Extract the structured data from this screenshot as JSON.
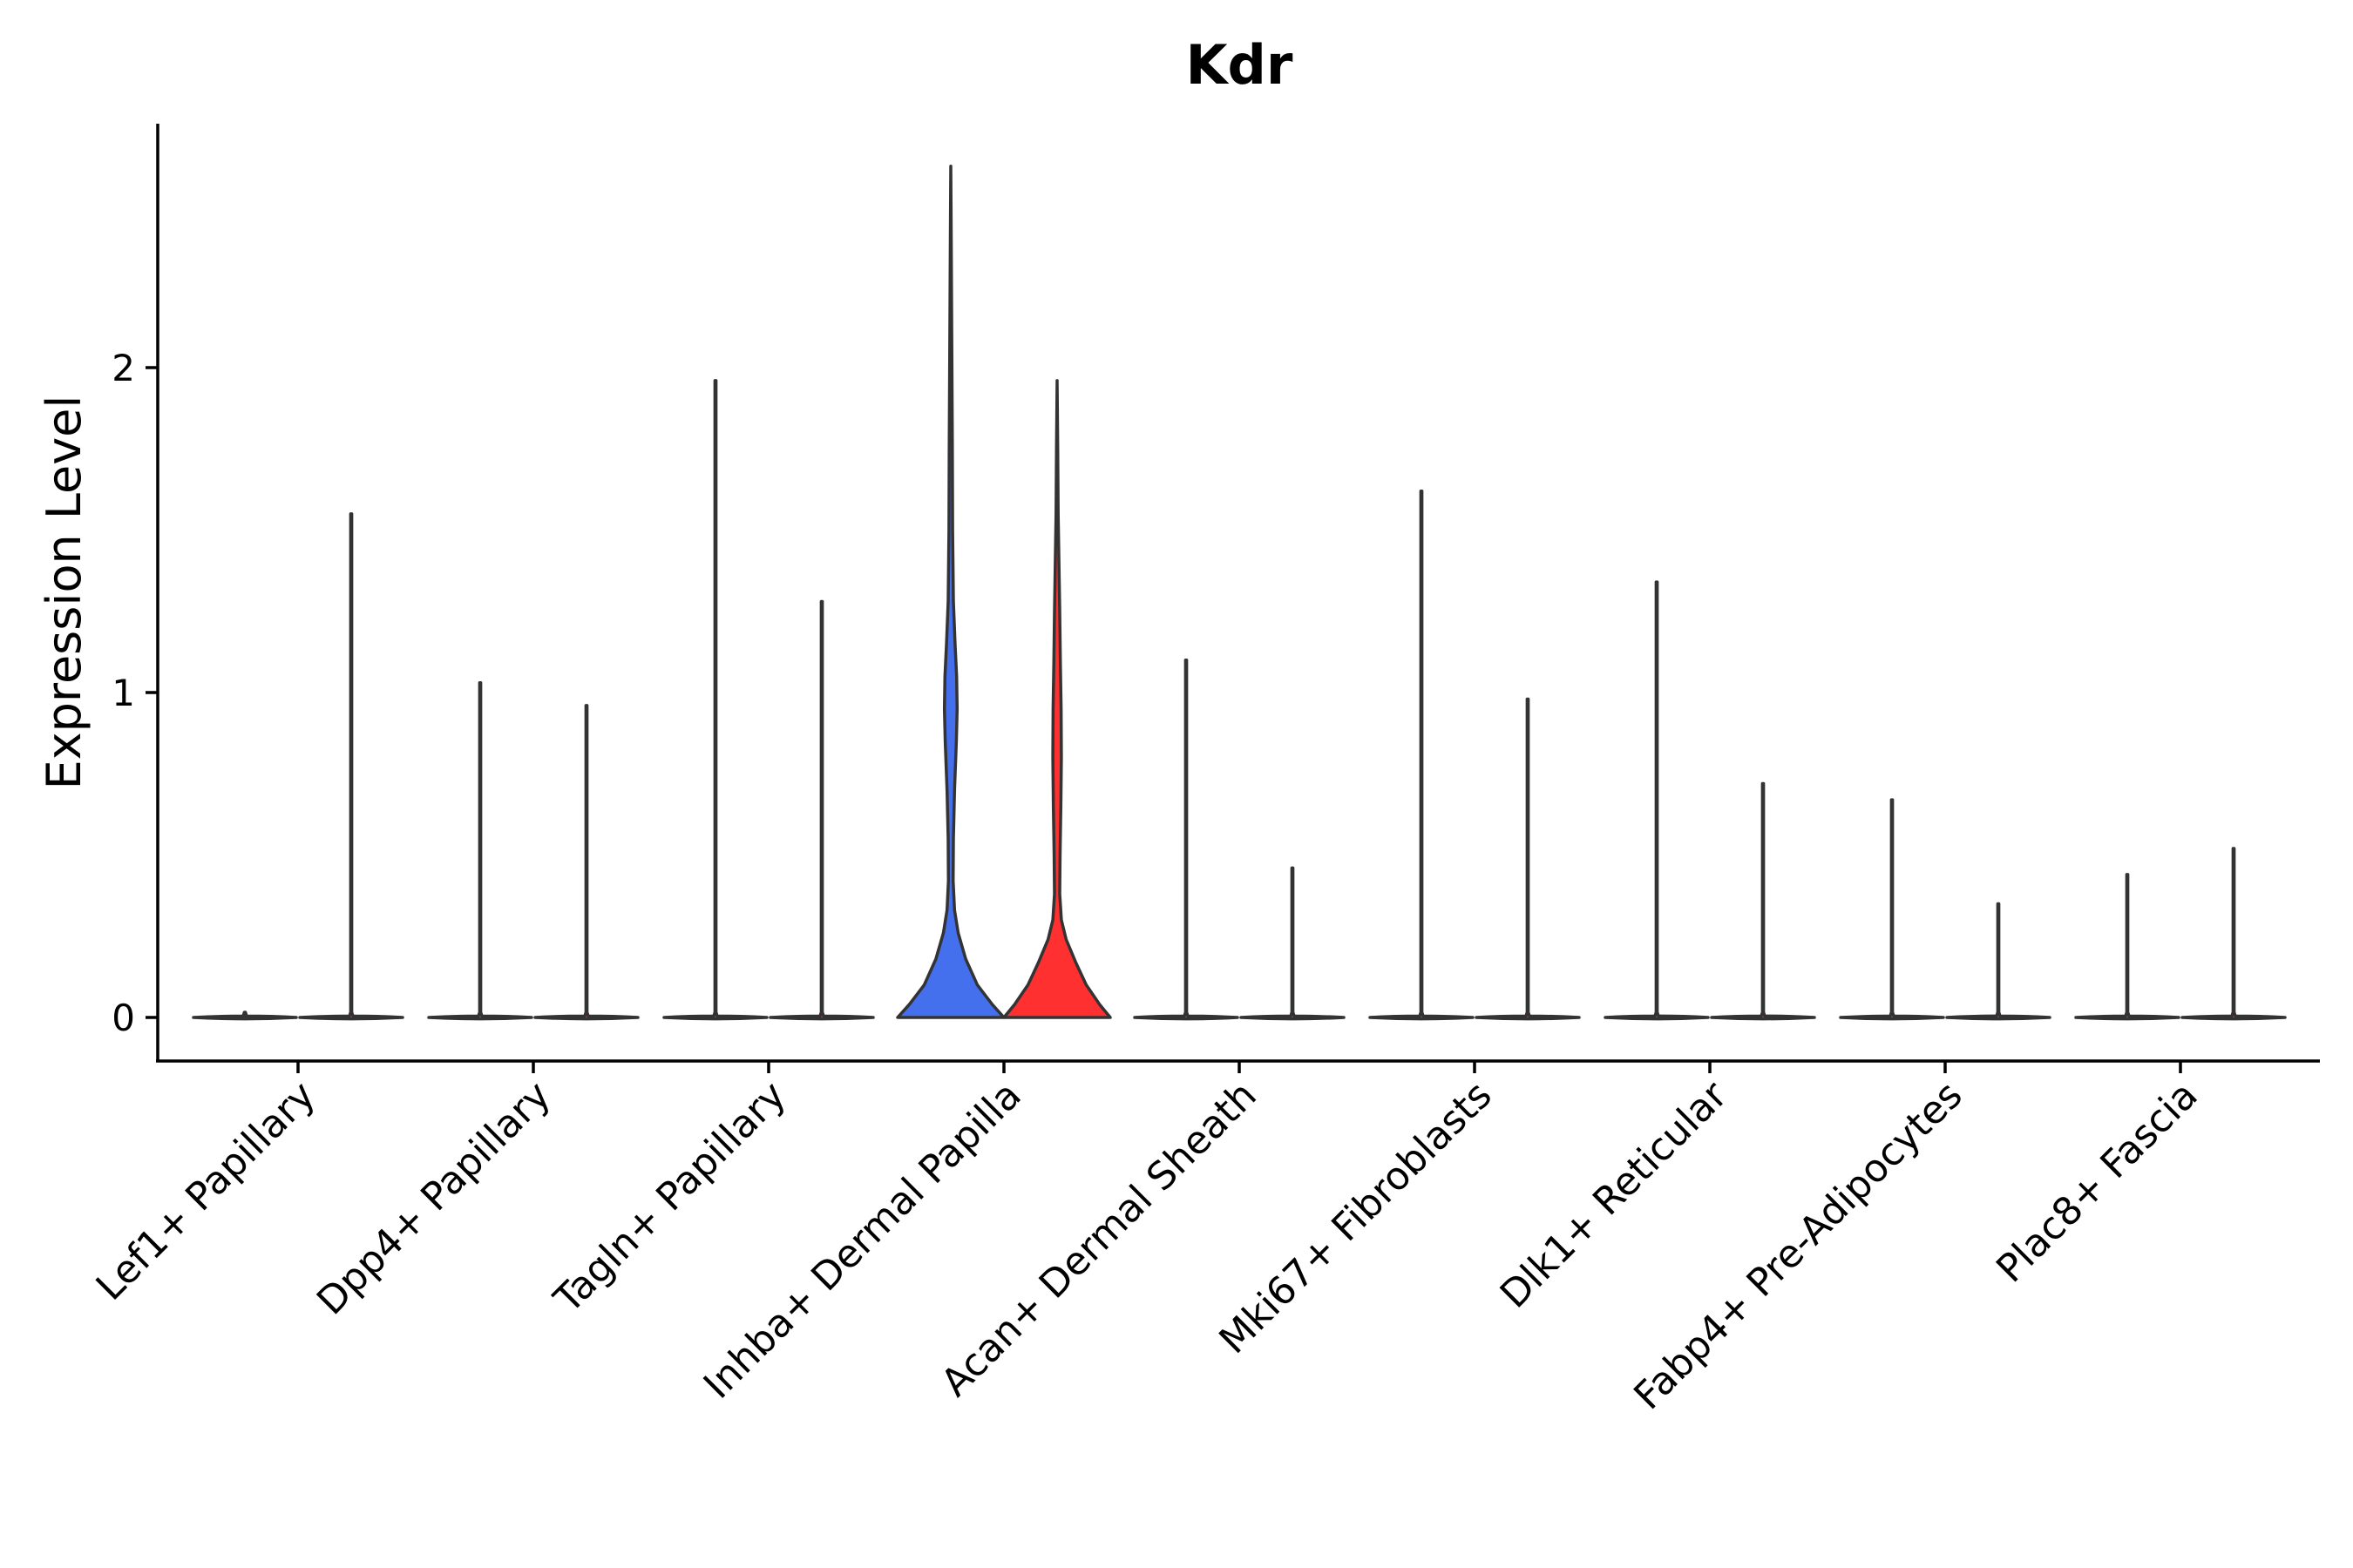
{
  "chart_data": {
    "type": "violin",
    "title": "Kdr",
    "xlabel": "",
    "ylabel": "Expression Level",
    "ylim": [
      -0.13,
      2.76
    ],
    "yticks": [
      0,
      1,
      2
    ],
    "grid": false,
    "legend": "none",
    "categories": [
      "Lef1+ Papillary",
      "Dpp4+ Papillary",
      "Tagln+ Papillary",
      "Inhba+ Dermal Papilla",
      "Acan+ Dermal Sheath",
      "Mki67+ Fibroblasts",
      "Dlk1+ Reticular",
      "Fabp4+ Pre-Adipocytes",
      "Plac8+ Fascia"
    ],
    "series": [
      {
        "name": "group 1",
        "color": "#4470EE",
        "max_values": [
          0.0,
          1.03,
          1.96,
          2.62,
          1.1,
          1.62,
          1.34,
          0.67,
          0.44
        ],
        "filled_density": [
          false,
          false,
          false,
          true,
          false,
          false,
          false,
          false,
          false
        ]
      },
      {
        "name": "group 2",
        "color": "#FF3030",
        "max_values": [
          1.55,
          0.96,
          1.28,
          1.96,
          0.46,
          0.98,
          0.72,
          0.35,
          0.52
        ],
        "filled_density": [
          false,
          false,
          false,
          true,
          false,
          false,
          false,
          false,
          false
        ]
      }
    ],
    "line_color": "#333333"
  }
}
